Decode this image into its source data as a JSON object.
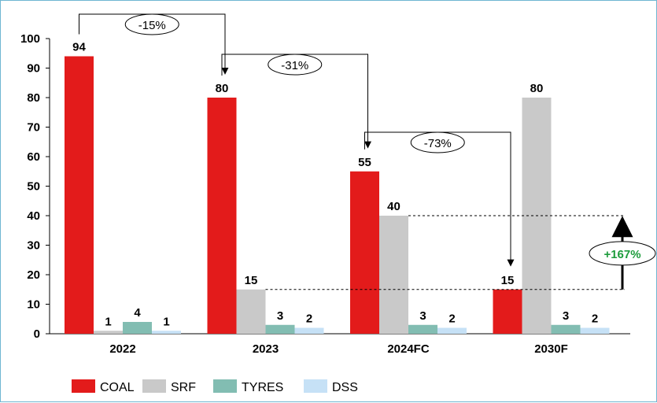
{
  "chart_data": {
    "type": "bar",
    "categories": [
      "2022",
      "2023",
      "2024FC",
      "2030F"
    ],
    "series": [
      {
        "name": "COAL",
        "color": "#e31b1b",
        "values": [
          94,
          80,
          55,
          15
        ]
      },
      {
        "name": "SRF",
        "color": "#c9c9c9",
        "values": [
          1,
          15,
          40,
          80
        ]
      },
      {
        "name": "TYRES",
        "color": "#82bdb2",
        "values": [
          4,
          3,
          3,
          3
        ]
      },
      {
        "name": "DSS",
        "color": "#c6e1f6",
        "values": [
          1,
          2,
          2,
          2
        ]
      }
    ],
    "data_labels": [
      [
        "94",
        "80",
        "55",
        "15"
      ],
      [
        "1",
        "15",
        "40",
        "80"
      ],
      [
        "4",
        "3",
        "3",
        "3"
      ],
      [
        "1",
        "2",
        "2",
        "2"
      ]
    ],
    "ylim": [
      0,
      100
    ],
    "yticks": [
      "0",
      "10",
      "20",
      "30",
      "40",
      "50",
      "60",
      "70",
      "80",
      "90",
      "100"
    ],
    "annotations": [
      {
        "text": "-15%",
        "from": 0,
        "to": 1,
        "type": "decrease"
      },
      {
        "text": "-31%",
        "from": 1,
        "to": 2,
        "type": "decrease"
      },
      {
        "text": "-73%",
        "from": 2,
        "to": 3,
        "type": "decrease"
      },
      {
        "text": "+167%",
        "type": "increase",
        "color": "#1e9c3c",
        "from_value": 15,
        "to_value": 40
      }
    ],
    "legend_placement": "bottom-left",
    "grid": false
  }
}
